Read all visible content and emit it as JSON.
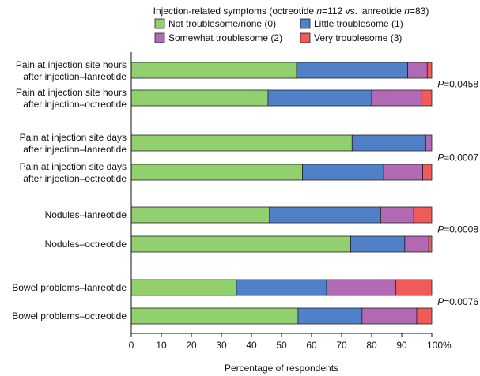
{
  "chart_data": {
    "type": "bar",
    "orientation": "horizontal",
    "stacked": true,
    "title_parts": [
      {
        "text": "Injection-related symptoms (octreotide ",
        "italic": false
      },
      {
        "text": "n",
        "italic": true
      },
      {
        "text": "=112 vs. lanreotide ",
        "italic": false
      },
      {
        "text": "n",
        "italic": true
      },
      {
        "text": "=83)",
        "italic": false
      }
    ],
    "xlabel": "Percentage of respondents",
    "xlim": [
      0,
      100
    ],
    "xticks": [
      "0",
      "10",
      "20",
      "30",
      "40",
      "50",
      "60",
      "70",
      "80",
      "90",
      "100%"
    ],
    "categories": [
      [
        "Pain at injection site hours",
        "after injection–lanreotide"
      ],
      [
        "Pain at injection site hours",
        "after injection–octreotide"
      ],
      [
        "Pain at injection site days",
        "after injection–lanreotide"
      ],
      [
        "Pain at injection site days",
        "after injection–octreotide"
      ],
      [
        "Nodules–lanreotide"
      ],
      [
        "Nodules–octreotide"
      ],
      [
        "Bowel problems–lanreotide"
      ],
      [
        "Bowel problems–octreotide"
      ]
    ],
    "series": [
      {
        "name": "Not troublesome/none (0)",
        "color": "#92d06f",
        "values": [
          55,
          45.5,
          73.5,
          57,
          46,
          73,
          35,
          55.5
        ]
      },
      {
        "name": "Little troublesome (1)",
        "color": "#5080c8",
        "values": [
          37,
          34.5,
          24.5,
          27,
          37,
          18,
          30,
          21.3
        ]
      },
      {
        "name": "Somewhat troublesome (2)",
        "color": "#b26ab5",
        "values": [
          6.5,
          16.5,
          2,
          13,
          11,
          8,
          23,
          18.2
        ]
      },
      {
        "name": "Very troublesome (3)",
        "color": "#f05a5a",
        "values": [
          1.5,
          3.5,
          0,
          3,
          6,
          1,
          12,
          5
        ]
      }
    ],
    "pvalues": [
      {
        "label": "P",
        "value": "=0.0458"
      },
      {
        "label": "P",
        "value": "=0.0007"
      },
      {
        "label": "P",
        "value": "=0.0008"
      },
      {
        "label": "P",
        "value": "=0.0076"
      }
    ],
    "legend_position": "top",
    "grid": false
  }
}
